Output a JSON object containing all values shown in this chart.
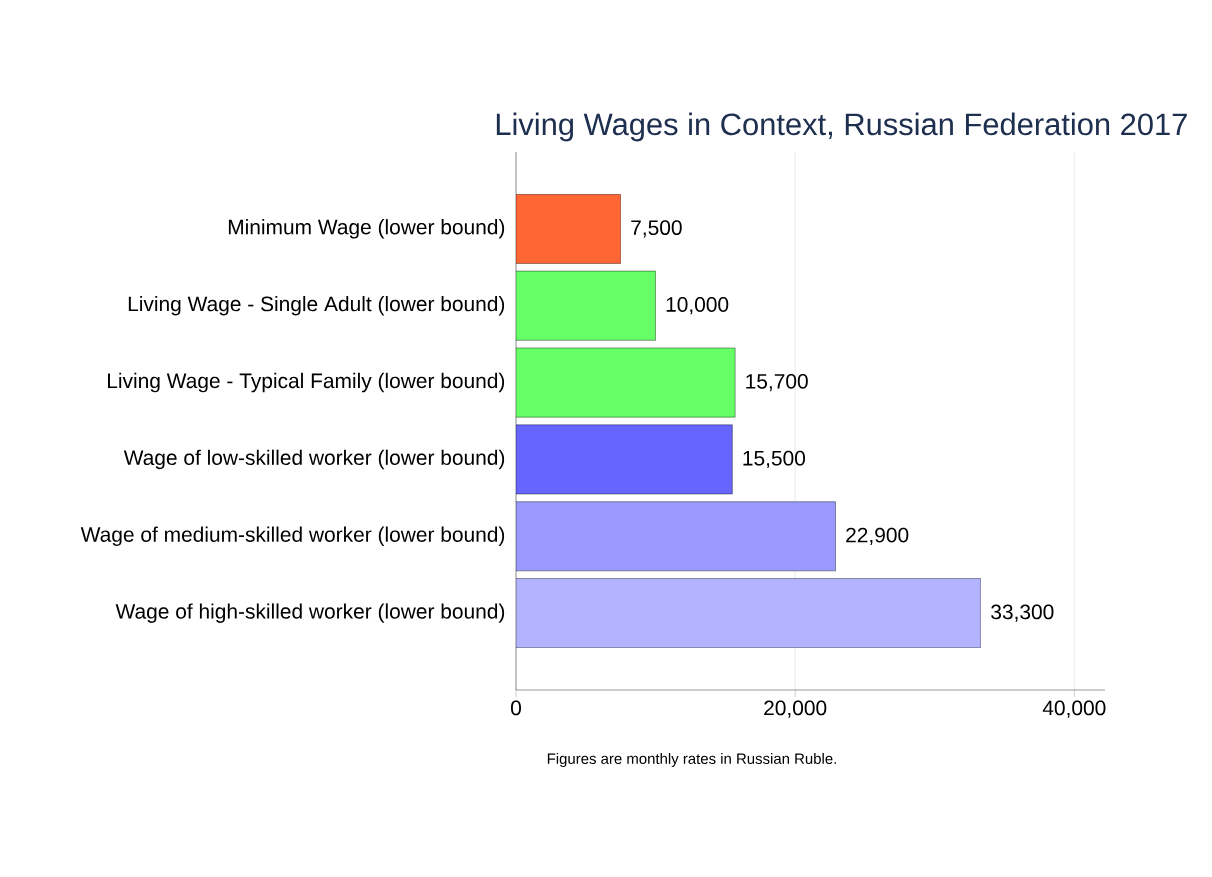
{
  "chart_data": {
    "type": "bar",
    "orientation": "horizontal",
    "title": "Living Wages in Context, Russian Federation 2017",
    "categories": [
      "Minimum Wage (lower bound)",
      "Living Wage - Single Adult (lower bound)",
      "Living Wage - Typical Family (lower bound)",
      "Wage of low-skilled worker (lower bound)",
      "Wage of medium-skilled worker (lower bound)",
      "Wage of high-skilled worker (lower bound)"
    ],
    "values": [
      7500,
      10000,
      15700,
      15500,
      22900,
      33300
    ],
    "value_labels": [
      "7,500",
      "10,000",
      "15,700",
      "15,500",
      "22,900",
      "33,300"
    ],
    "colors": [
      "#ff6633",
      "#66ff66",
      "#66ff66",
      "#6666ff",
      "#9999ff",
      "#b3b3ff"
    ],
    "xlim": [
      0,
      42200
    ],
    "xticks": [
      0,
      {
        "value": 20000,
        "label": "20,000"
      },
      {
        "value": 40000,
        "label": "40,000"
      }
    ],
    "grid": "x",
    "annotations": [
      "Figures are monthly rates in Russian Ruble."
    ]
  }
}
